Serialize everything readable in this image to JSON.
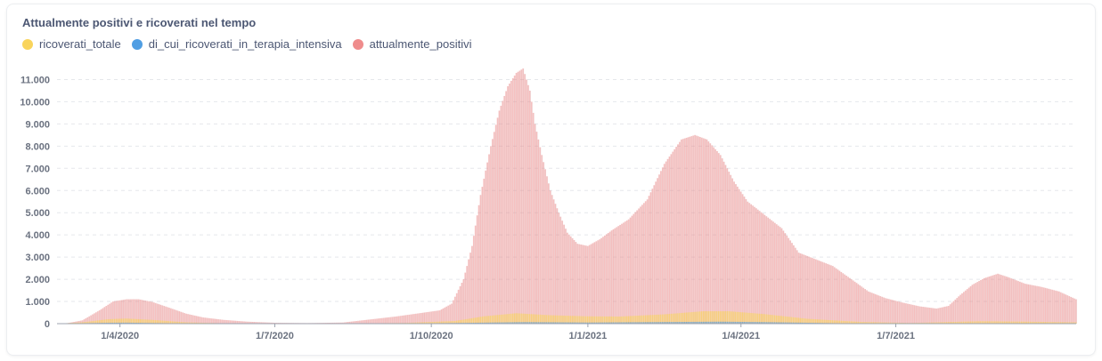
{
  "chart_data": {
    "type": "bar",
    "title": "Attualmente positivi e ricoverati nel tempo",
    "xlabel": "",
    "ylabel": "",
    "ylim": [
      0,
      11500
    ],
    "x_ticks": [
      "1/4/2020",
      "1/7/2020",
      "1/10/2020",
      "1/1/2021",
      "1/4/2021",
      "1/7/2021"
    ],
    "y_ticks": [
      "0",
      "1.000",
      "2.000",
      "3.000",
      "4.000",
      "5.000",
      "6.000",
      "7.000",
      "8.000",
      "9.000",
      "10.000",
      "11.000"
    ],
    "grid": "horizontal dashed",
    "legend_position": "top-left",
    "x_start": "2020-02-24",
    "x_end": "2021-10-15",
    "series": [
      {
        "name": "ricoverati_totale",
        "color": "#f9d45c",
        "points": [
          [
            "2020-02-24",
            0
          ],
          [
            "2020-03-10",
            60
          ],
          [
            "2020-03-25",
            200
          ],
          [
            "2020-04-05",
            230
          ],
          [
            "2020-04-20",
            170
          ],
          [
            "2020-05-10",
            60
          ],
          [
            "2020-06-01",
            15
          ],
          [
            "2020-07-01",
            5
          ],
          [
            "2020-08-15",
            8
          ],
          [
            "2020-09-15",
            30
          ],
          [
            "2020-10-15",
            120
          ],
          [
            "2020-11-01",
            330
          ],
          [
            "2020-11-20",
            470
          ],
          [
            "2020-12-10",
            380
          ],
          [
            "2021-01-01",
            330
          ],
          [
            "2021-01-20",
            320
          ],
          [
            "2021-02-15",
            420
          ],
          [
            "2021-03-10",
            560
          ],
          [
            "2021-03-25",
            560
          ],
          [
            "2021-04-15",
            430
          ],
          [
            "2021-05-10",
            220
          ],
          [
            "2021-06-10",
            80
          ],
          [
            "2021-07-10",
            30
          ],
          [
            "2021-08-20",
            110
          ],
          [
            "2021-09-15",
            90
          ],
          [
            "2021-10-15",
            60
          ]
        ]
      },
      {
        "name": "di_cui_ricoverati_in_terapia_intensiva",
        "color": "#509ee3",
        "points": [
          [
            "2020-02-24",
            0
          ],
          [
            "2020-03-25",
            40
          ],
          [
            "2020-04-05",
            45
          ],
          [
            "2020-05-10",
            10
          ],
          [
            "2020-06-15",
            2
          ],
          [
            "2020-09-15",
            5
          ],
          [
            "2020-11-01",
            45
          ],
          [
            "2020-11-25",
            70
          ],
          [
            "2021-01-01",
            50
          ],
          [
            "2021-03-20",
            90
          ],
          [
            "2021-04-15",
            70
          ],
          [
            "2021-06-01",
            15
          ],
          [
            "2021-08-25",
            20
          ],
          [
            "2021-10-15",
            12
          ]
        ]
      },
      {
        "name": "attualmente_positivi",
        "color": "#ef8c8c",
        "points": [
          [
            "2020-02-24",
            0
          ],
          [
            "2020-03-01",
            20
          ],
          [
            "2020-03-10",
            150
          ],
          [
            "2020-03-20",
            600
          ],
          [
            "2020-03-28",
            1000
          ],
          [
            "2020-04-05",
            1100
          ],
          [
            "2020-04-12",
            1100
          ],
          [
            "2020-04-20",
            980
          ],
          [
            "2020-04-30",
            720
          ],
          [
            "2020-05-10",
            450
          ],
          [
            "2020-05-20",
            280
          ],
          [
            "2020-06-01",
            170
          ],
          [
            "2020-06-15",
            90
          ],
          [
            "2020-07-01",
            40
          ],
          [
            "2020-07-20",
            25
          ],
          [
            "2020-08-10",
            50
          ],
          [
            "2020-08-25",
            180
          ],
          [
            "2020-09-10",
            320
          ],
          [
            "2020-09-25",
            480
          ],
          [
            "2020-10-06",
            600
          ],
          [
            "2020-10-13",
            900
          ],
          [
            "2020-10-20",
            2000
          ],
          [
            "2020-10-25",
            3500
          ],
          [
            "2020-10-30",
            5800
          ],
          [
            "2020-11-05",
            8000
          ],
          [
            "2020-11-10",
            9600
          ],
          [
            "2020-11-15",
            10700
          ],
          [
            "2020-11-20",
            11300
          ],
          [
            "2020-11-24",
            11500
          ],
          [
            "2020-11-28",
            10500
          ],
          [
            "2020-12-01",
            9000
          ],
          [
            "2020-12-05",
            7600
          ],
          [
            "2020-12-10",
            6000
          ],
          [
            "2020-12-15",
            5000
          ],
          [
            "2020-12-20",
            4100
          ],
          [
            "2020-12-26",
            3600
          ],
          [
            "2021-01-01",
            3500
          ],
          [
            "2021-01-08",
            3800
          ],
          [
            "2021-01-15",
            4200
          ],
          [
            "2021-01-25",
            4700
          ],
          [
            "2021-02-05",
            5600
          ],
          [
            "2021-02-15",
            7200
          ],
          [
            "2021-02-25",
            8300
          ],
          [
            "2021-03-05",
            8500
          ],
          [
            "2021-03-12",
            8300
          ],
          [
            "2021-03-20",
            7600
          ],
          [
            "2021-03-28",
            6400
          ],
          [
            "2021-04-05",
            5500
          ],
          [
            "2021-04-15",
            4900
          ],
          [
            "2021-04-25",
            4300
          ],
          [
            "2021-05-05",
            3200
          ],
          [
            "2021-05-15",
            2900
          ],
          [
            "2021-05-25",
            2600
          ],
          [
            "2021-06-05",
            2000
          ],
          [
            "2021-06-15",
            1450
          ],
          [
            "2021-06-25",
            1150
          ],
          [
            "2021-07-05",
            950
          ],
          [
            "2021-07-15",
            780
          ],
          [
            "2021-07-25",
            680
          ],
          [
            "2021-08-01",
            800
          ],
          [
            "2021-08-08",
            1300
          ],
          [
            "2021-08-15",
            1750
          ],
          [
            "2021-08-22",
            2050
          ],
          [
            "2021-08-30",
            2250
          ],
          [
            "2021-09-05",
            2100
          ],
          [
            "2021-09-15",
            1800
          ],
          [
            "2021-09-25",
            1650
          ],
          [
            "2021-10-05",
            1450
          ],
          [
            "2021-10-15",
            1100
          ]
        ]
      }
    ]
  }
}
